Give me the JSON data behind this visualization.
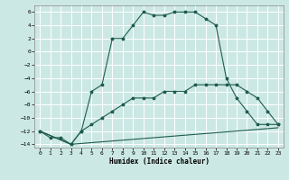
{
  "xlabel": "Humidex (Indice chaleur)",
  "ylabel": "",
  "bg_color": "#cce8e4",
  "grid_color": "#ffffff",
  "line_color": "#1e5c50",
  "xlim": [
    -0.5,
    23.5
  ],
  "ylim": [
    -14.5,
    7
  ],
  "xticks": [
    0,
    1,
    2,
    3,
    4,
    5,
    6,
    7,
    8,
    9,
    10,
    11,
    12,
    13,
    14,
    15,
    16,
    17,
    18,
    19,
    20,
    21,
    22,
    23
  ],
  "yticks": [
    -14,
    -12,
    -10,
    -8,
    -6,
    -4,
    -2,
    0,
    2,
    4,
    6
  ],
  "curve1_x": [
    0,
    1,
    2,
    3,
    4,
    5,
    6,
    7,
    8,
    9,
    10,
    11,
    12,
    13,
    14,
    15,
    16,
    17,
    18,
    19,
    20,
    21,
    22,
    23
  ],
  "curve1_y": [
    -12,
    -13,
    -13,
    -14,
    -12,
    -6,
    -5,
    2,
    2,
    4,
    6,
    5.5,
    5.5,
    6,
    6,
    6,
    5,
    4,
    -4,
    -7,
    -9,
    -11,
    -11,
    -11
  ],
  "curve2_x": [
    0,
    3,
    4,
    5,
    6,
    7,
    8,
    9,
    10,
    11,
    12,
    13,
    14,
    15,
    16,
    17,
    18,
    19,
    20,
    21,
    22,
    23
  ],
  "curve2_y": [
    -12,
    -14,
    -12,
    -11,
    -10,
    -9,
    -8,
    -7,
    -7,
    -7,
    -6,
    -6,
    -6,
    -5,
    -5,
    -5,
    -5,
    -5,
    -6,
    -7,
    -9,
    -11
  ],
  "curve3_x": [
    0,
    3,
    23
  ],
  "curve3_y": [
    -12,
    -14,
    -11.5
  ]
}
